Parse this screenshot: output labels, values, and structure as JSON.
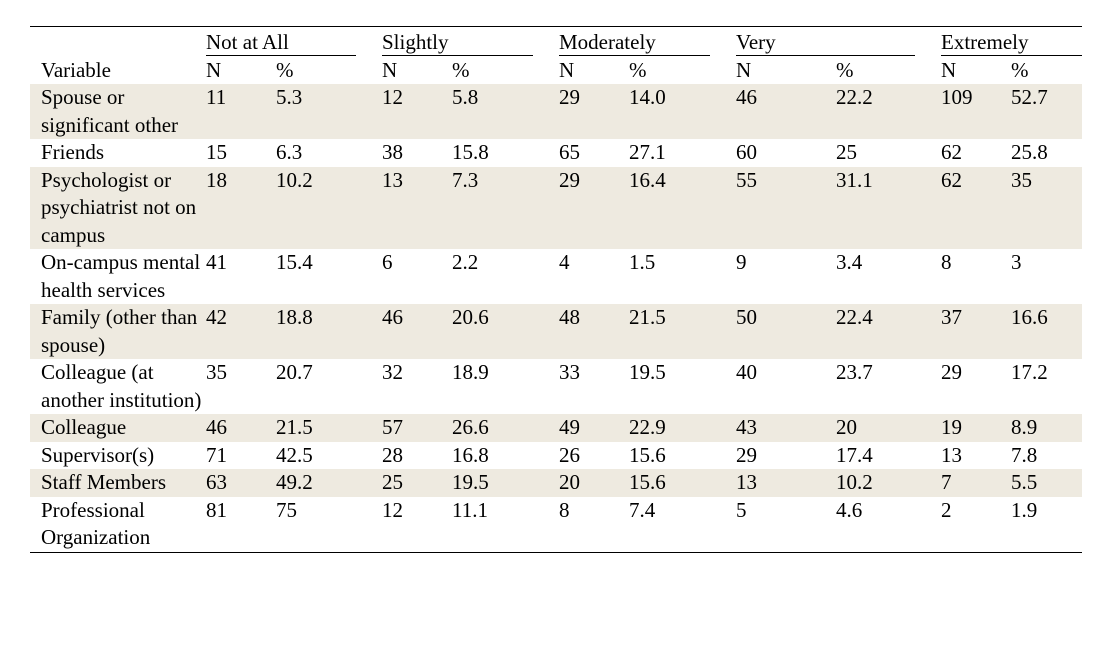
{
  "table": {
    "variable_header": "Variable",
    "groups": [
      {
        "label": "Not at All",
        "n_label": "N",
        "pct_label": "%"
      },
      {
        "label": "Slightly",
        "n_label": "N",
        "pct_label": "%"
      },
      {
        "label": "Moderately",
        "n_label": "N",
        "pct_label": "%"
      },
      {
        "label": "Very",
        "n_label": "N",
        "pct_label": "%"
      },
      {
        "label": "Extremely",
        "n_label": "N",
        "pct_label": "%"
      }
    ],
    "rows": [
      {
        "variable": "Spouse or significant other",
        "shaded": true,
        "cells": [
          "11",
          "5.3",
          "12",
          "5.8",
          "29",
          "14.0",
          "46",
          "22.2",
          "109",
          "52.7"
        ]
      },
      {
        "variable": "Friends",
        "shaded": false,
        "cells": [
          "15",
          "6.3",
          "38",
          "15.8",
          "65",
          "27.1",
          "60",
          "25",
          "62",
          "25.8"
        ]
      },
      {
        "variable": "Psychologist or psychiatrist not on campus",
        "shaded": true,
        "cells": [
          "18",
          "10.2",
          "13",
          "7.3",
          "29",
          "16.4",
          "55",
          "31.1",
          "62",
          "35"
        ]
      },
      {
        "variable": "On-campus mental health services",
        "shaded": false,
        "cells": [
          "41",
          "15.4",
          "6",
          "2.2",
          "4",
          "1.5",
          "9",
          "3.4",
          "8",
          "3"
        ]
      },
      {
        "variable": "Family (other than spouse)",
        "shaded": true,
        "cells": [
          "42",
          "18.8",
          "46",
          "20.6",
          "48",
          "21.5",
          "50",
          "22.4",
          "37",
          "16.6"
        ]
      },
      {
        "variable": "Colleague (at another institution)",
        "shaded": false,
        "cells": [
          "35",
          "20.7",
          "32",
          "18.9",
          "33",
          "19.5",
          "40",
          "23.7",
          "29",
          "17.2"
        ]
      },
      {
        "variable": "Colleague",
        "shaded": true,
        "cells": [
          "46",
          "21.5",
          "57",
          "26.6",
          "49",
          "22.9",
          "43",
          "20",
          "19",
          "8.9"
        ]
      },
      {
        "variable": "Supervisor(s)",
        "shaded": false,
        "cells": [
          "71",
          "42.5",
          "28",
          "16.8",
          "26",
          "15.6",
          "29",
          "17.4",
          "13",
          "7.8"
        ]
      },
      {
        "variable": "Staff Members",
        "shaded": true,
        "cells": [
          "63",
          "49.2",
          "25",
          "19.5",
          "20",
          "15.6",
          "13",
          "10.2",
          "7",
          "5.5"
        ]
      },
      {
        "variable": "Professional Organization",
        "shaded": false,
        "cells": [
          "81",
          "75",
          "12",
          "11.1",
          "8",
          "7.4",
          "5",
          "4.6",
          "2",
          "1.9"
        ]
      }
    ]
  }
}
